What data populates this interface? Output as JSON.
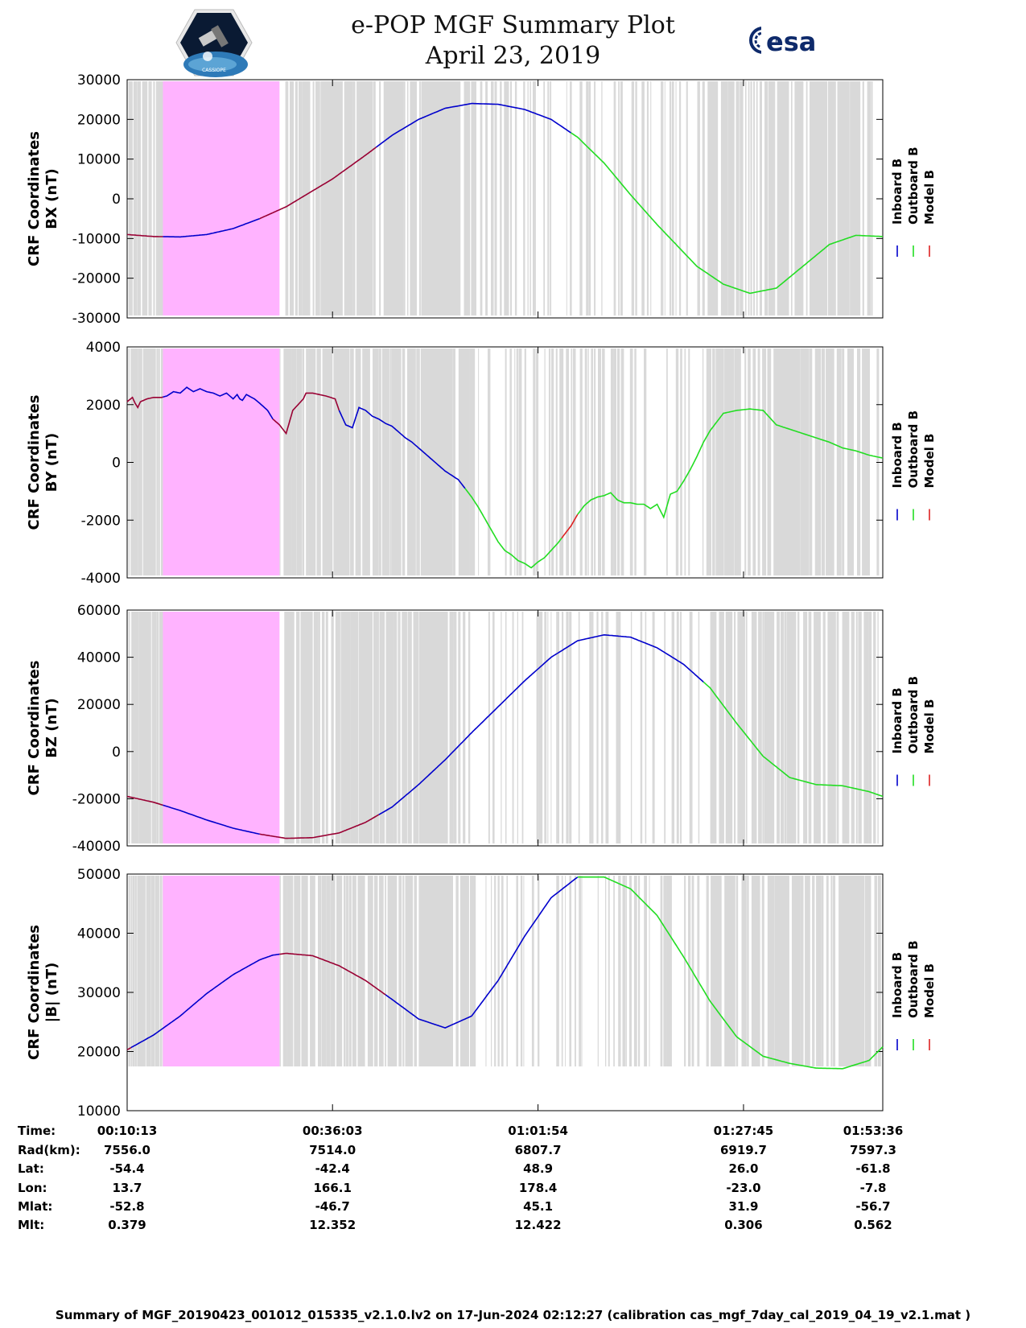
{
  "header": {
    "title": "e-POP MGF Summary Plot",
    "date": "April 23, 2019",
    "left_logo": "cassiope-mission-patch",
    "left_logo_text": "CASSIOPE",
    "right_logo": "esa-logo",
    "right_logo_text": "esa"
  },
  "colors": {
    "inboard": "#0000cc",
    "outboard": "#22dd22",
    "model": "#dd2222",
    "mixed": "#990033",
    "shade_magenta": "#ffb3ff",
    "shade_gray": "#d9d9d9"
  },
  "chart_data": [
    {
      "type": "line",
      "ylabel_line1": "CRF Coordinates",
      "ylabel_line2": "BX (nT)",
      "ylim": [
        -30000,
        30000
      ],
      "yticks": [
        -30000,
        -20000,
        -10000,
        0,
        10000,
        20000,
        30000
      ],
      "x": [
        0,
        200,
        400,
        600,
        800,
        1000,
        1200,
        1400,
        1550,
        1800,
        2000,
        2200,
        2400,
        2600,
        2800,
        3000,
        3200,
        3400,
        3600,
        3800,
        4000,
        4200,
        4300,
        4500,
        4700,
        4900,
        5100,
        5300,
        5500,
        5703
      ],
      "series": [
        {
          "name": "Inboard B",
          "values": [
            -9000,
            -9500,
            -9600,
            -9000,
            -7500,
            -5000,
            -2000,
            2000,
            5000,
            11000,
            16000,
            20000,
            22800,
            24000,
            23800,
            22500,
            20000,
            15500,
            9000,
            1000,
            -6500,
            -13500,
            -17000,
            -21500,
            -23800,
            -22500,
            -17000,
            -11500,
            -9200,
            -9500
          ]
        }
      ],
      "segments": [
        {
          "from": 0,
          "to": 270,
          "color": "mixed"
        },
        {
          "from": 270,
          "to": 1000,
          "color": "inboard"
        },
        {
          "from": 1000,
          "to": 1880,
          "color": "mixed"
        },
        {
          "from": 1880,
          "to": 3350,
          "color": "inboard"
        },
        {
          "from": 3350,
          "to": 5703,
          "color": "outboard"
        }
      ],
      "legend": [
        "Inboard B",
        "Outboard B",
        "Model B"
      ]
    },
    {
      "type": "line",
      "ylabel_line1": "CRF Coordinates",
      "ylabel_line2": "BY (nT)",
      "ylim": [
        -4000,
        4000
      ],
      "yticks": [
        -4000,
        -2000,
        0,
        2000,
        4000
      ],
      "x": [
        0,
        40,
        60,
        80,
        100,
        150,
        200,
        260,
        300,
        350,
        400,
        450,
        500,
        550,
        600,
        650,
        700,
        750,
        800,
        830,
        850,
        870,
        900,
        960,
        1000,
        1060,
        1100,
        1150,
        1200,
        1250,
        1330,
        1350,
        1360,
        1370,
        1380,
        1390,
        1400,
        1450,
        1500,
        1570,
        1600,
        1650,
        1700,
        1750,
        1800,
        1850,
        1900,
        1950,
        2000,
        2050,
        2100,
        2150,
        2200,
        2250,
        2300,
        2350,
        2400,
        2450,
        2500,
        2550,
        2600,
        2650,
        2700,
        2750,
        2800,
        2850,
        2900,
        2950,
        3000,
        3050,
        3100,
        3150,
        3200,
        3250,
        3300,
        3350,
        3400,
        3450,
        3500,
        3550,
        3600,
        3650,
        3700,
        3750,
        3800,
        3850,
        3900,
        3950,
        4000,
        4050,
        4100,
        4150,
        4200,
        4250,
        4300,
        4350,
        4400,
        4450,
        4500,
        4600,
        4700,
        4800,
        4900,
        5000,
        5100,
        5200,
        5300,
        5400,
        5500,
        5600,
        5703
      ],
      "series": [
        {
          "name": "Inboard B",
          "values": [
            2100,
            2250,
            2050,
            1900,
            2100,
            2200,
            2250,
            2250,
            2300,
            2450,
            2400,
            2600,
            2450,
            2550,
            2450,
            2400,
            2300,
            2400,
            2200,
            2350,
            2200,
            2150,
            2350,
            2200,
            2050,
            1800,
            1500,
            1300,
            1000,
            1800,
            2200,
            2400,
            2400,
            2400,
            2400,
            2400,
            2400,
            2350,
            2300,
            2200,
            1800,
            1300,
            1200,
            1900,
            1800,
            1600,
            1500,
            1350,
            1250,
            1050,
            850,
            700,
            500,
            300,
            100,
            -100,
            -300,
            -450,
            -600,
            -900,
            -1200,
            -1550,
            -1950,
            -2350,
            -2750,
            -3050,
            -3200,
            -3400,
            -3500,
            -3650,
            -3450,
            -3300,
            -3050,
            -2800,
            -2500,
            -2200,
            -1800,
            -1500,
            -1300,
            -1200,
            -1150,
            -1050,
            -1300,
            -1400,
            -1400,
            -1450,
            -1450,
            -1600,
            -1450,
            -1900,
            -1100,
            -1000,
            -650,
            -250,
            200,
            700,
            1100,
            1400,
            1700,
            1800,
            1850,
            1800,
            1300,
            1150,
            1000,
            850,
            700,
            500,
            400,
            250,
            150
          ]
        }
      ],
      "segments": [
        {
          "from": 0,
          "to": 270,
          "color": "mixed"
        },
        {
          "from": 270,
          "to": 1100,
          "color": "inboard"
        },
        {
          "from": 1100,
          "to": 1600,
          "color": "mixed"
        },
        {
          "from": 1600,
          "to": 2550,
          "color": "inboard"
        },
        {
          "from": 2550,
          "to": 3280,
          "color": "outboard"
        },
        {
          "from": 3280,
          "to": 3400,
          "color": "model"
        },
        {
          "from": 3400,
          "to": 5703,
          "color": "outboard"
        }
      ],
      "legend": [
        "Inboard B",
        "Outboard B",
        "Model B"
      ]
    },
    {
      "type": "line",
      "ylabel_line1": "CRF Coordinates",
      "ylabel_line2": "BZ (nT)",
      "ylim": [
        -40000,
        60000
      ],
      "yticks": [
        -40000,
        -20000,
        0,
        20000,
        40000,
        60000
      ],
      "x": [
        0,
        200,
        400,
        600,
        800,
        1000,
        1200,
        1400,
        1600,
        1800,
        2000,
        2200,
        2400,
        2600,
        2800,
        3000,
        3200,
        3400,
        3600,
        3800,
        4000,
        4200,
        4400,
        4600,
        4800,
        5000,
        5200,
        5400,
        5600,
        5703
      ],
      "series": [
        {
          "name": "Inboard B",
          "values": [
            -19000,
            -21500,
            -25000,
            -29000,
            -32500,
            -35000,
            -36800,
            -36500,
            -34500,
            -30000,
            -23500,
            -14000,
            -3500,
            8000,
            19000,
            30000,
            40000,
            47000,
            49500,
            48500,
            44000,
            37000,
            27000,
            12000,
            -2000,
            -11000,
            -14000,
            -14500,
            -17000,
            -19000
          ]
        }
      ],
      "segments": [
        {
          "from": 0,
          "to": 270,
          "color": "mixed"
        },
        {
          "from": 270,
          "to": 1000,
          "color": "inboard"
        },
        {
          "from": 1000,
          "to": 1900,
          "color": "mixed"
        },
        {
          "from": 1900,
          "to": 4350,
          "color": "inboard"
        },
        {
          "from": 4350,
          "to": 5703,
          "color": "outboard"
        }
      ],
      "legend": [
        "Inboard B",
        "Outboard B",
        "Model B"
      ]
    },
    {
      "type": "line",
      "ylabel_line1": "CRF Coordinates",
      "ylabel_line2": "|B| (nT)",
      "ylim": [
        10000,
        50000
      ],
      "yticks": [
        10000,
        20000,
        30000,
        40000,
        50000
      ],
      "x": [
        0,
        200,
        400,
        600,
        800,
        1000,
        1100,
        1200,
        1400,
        1600,
        1800,
        2000,
        2200,
        2400,
        2600,
        2800,
        3000,
        3200,
        3400,
        3600,
        3800,
        4000,
        4200,
        4400,
        4600,
        4800,
        5000,
        5200,
        5400,
        5600,
        5703
      ],
      "series": [
        {
          "name": "Inboard B",
          "values": [
            20300,
            22800,
            26000,
            29800,
            33000,
            35500,
            36300,
            36600,
            36200,
            34500,
            32000,
            28800,
            25500,
            24000,
            26000,
            32000,
            39500,
            46000,
            49500,
            49500,
            47500,
            43000,
            36000,
            28500,
            22500,
            19200,
            18000,
            17200,
            17100,
            18500,
            20800
          ]
        }
      ],
      "segments": [
        {
          "from": 0,
          "to": 30,
          "color": "mixed"
        },
        {
          "from": 30,
          "to": 1150,
          "color": "inboard"
        },
        {
          "from": 1150,
          "to": 1950,
          "color": "mixed"
        },
        {
          "from": 1950,
          "to": 3400,
          "color": "inboard"
        },
        {
          "from": 3400,
          "to": 5703,
          "color": "outboard"
        }
      ],
      "legend": [
        "Inboard B",
        "Outboard B",
        "Model B"
      ]
    }
  ],
  "x_axis": {
    "range_seconds": [
      0,
      5703
    ],
    "tick_seconds": [
      0,
      1550,
      3101,
      4652,
      6203
    ],
    "shade_magenta": [
      270,
      1150
    ],
    "shade_gray_dense": [
      2220,
      2420
    ]
  },
  "ephemeris": {
    "labels": [
      "Time:",
      "Rad(km):",
      "Lat:",
      "Lon:",
      "Mlat:",
      "Mlt:"
    ],
    "columns": [
      [
        "00:10:13",
        "7556.0",
        "-54.4",
        "13.7",
        "-52.8",
        "0.379"
      ],
      [
        "00:36:03",
        "7514.0",
        "-42.4",
        "166.1",
        "-46.7",
        "12.352"
      ],
      [
        "01:01:54",
        "6807.7",
        "48.9",
        "178.4",
        "45.1",
        "12.422"
      ],
      [
        "01:27:45",
        "6919.7",
        "26.0",
        "-23.0",
        "31.9",
        "0.306"
      ],
      [
        "01:53:36",
        "7597.3",
        "-61.8",
        "-7.8",
        "-56.7",
        "0.562"
      ]
    ]
  },
  "footer": "Summary of MGF_20190423_001012_015335_v2.1.0.lv2 on 17-Jun-2024 02:12:27 (calibration cas_mgf_7day_cal_2019_04_19_v2.1.mat )"
}
